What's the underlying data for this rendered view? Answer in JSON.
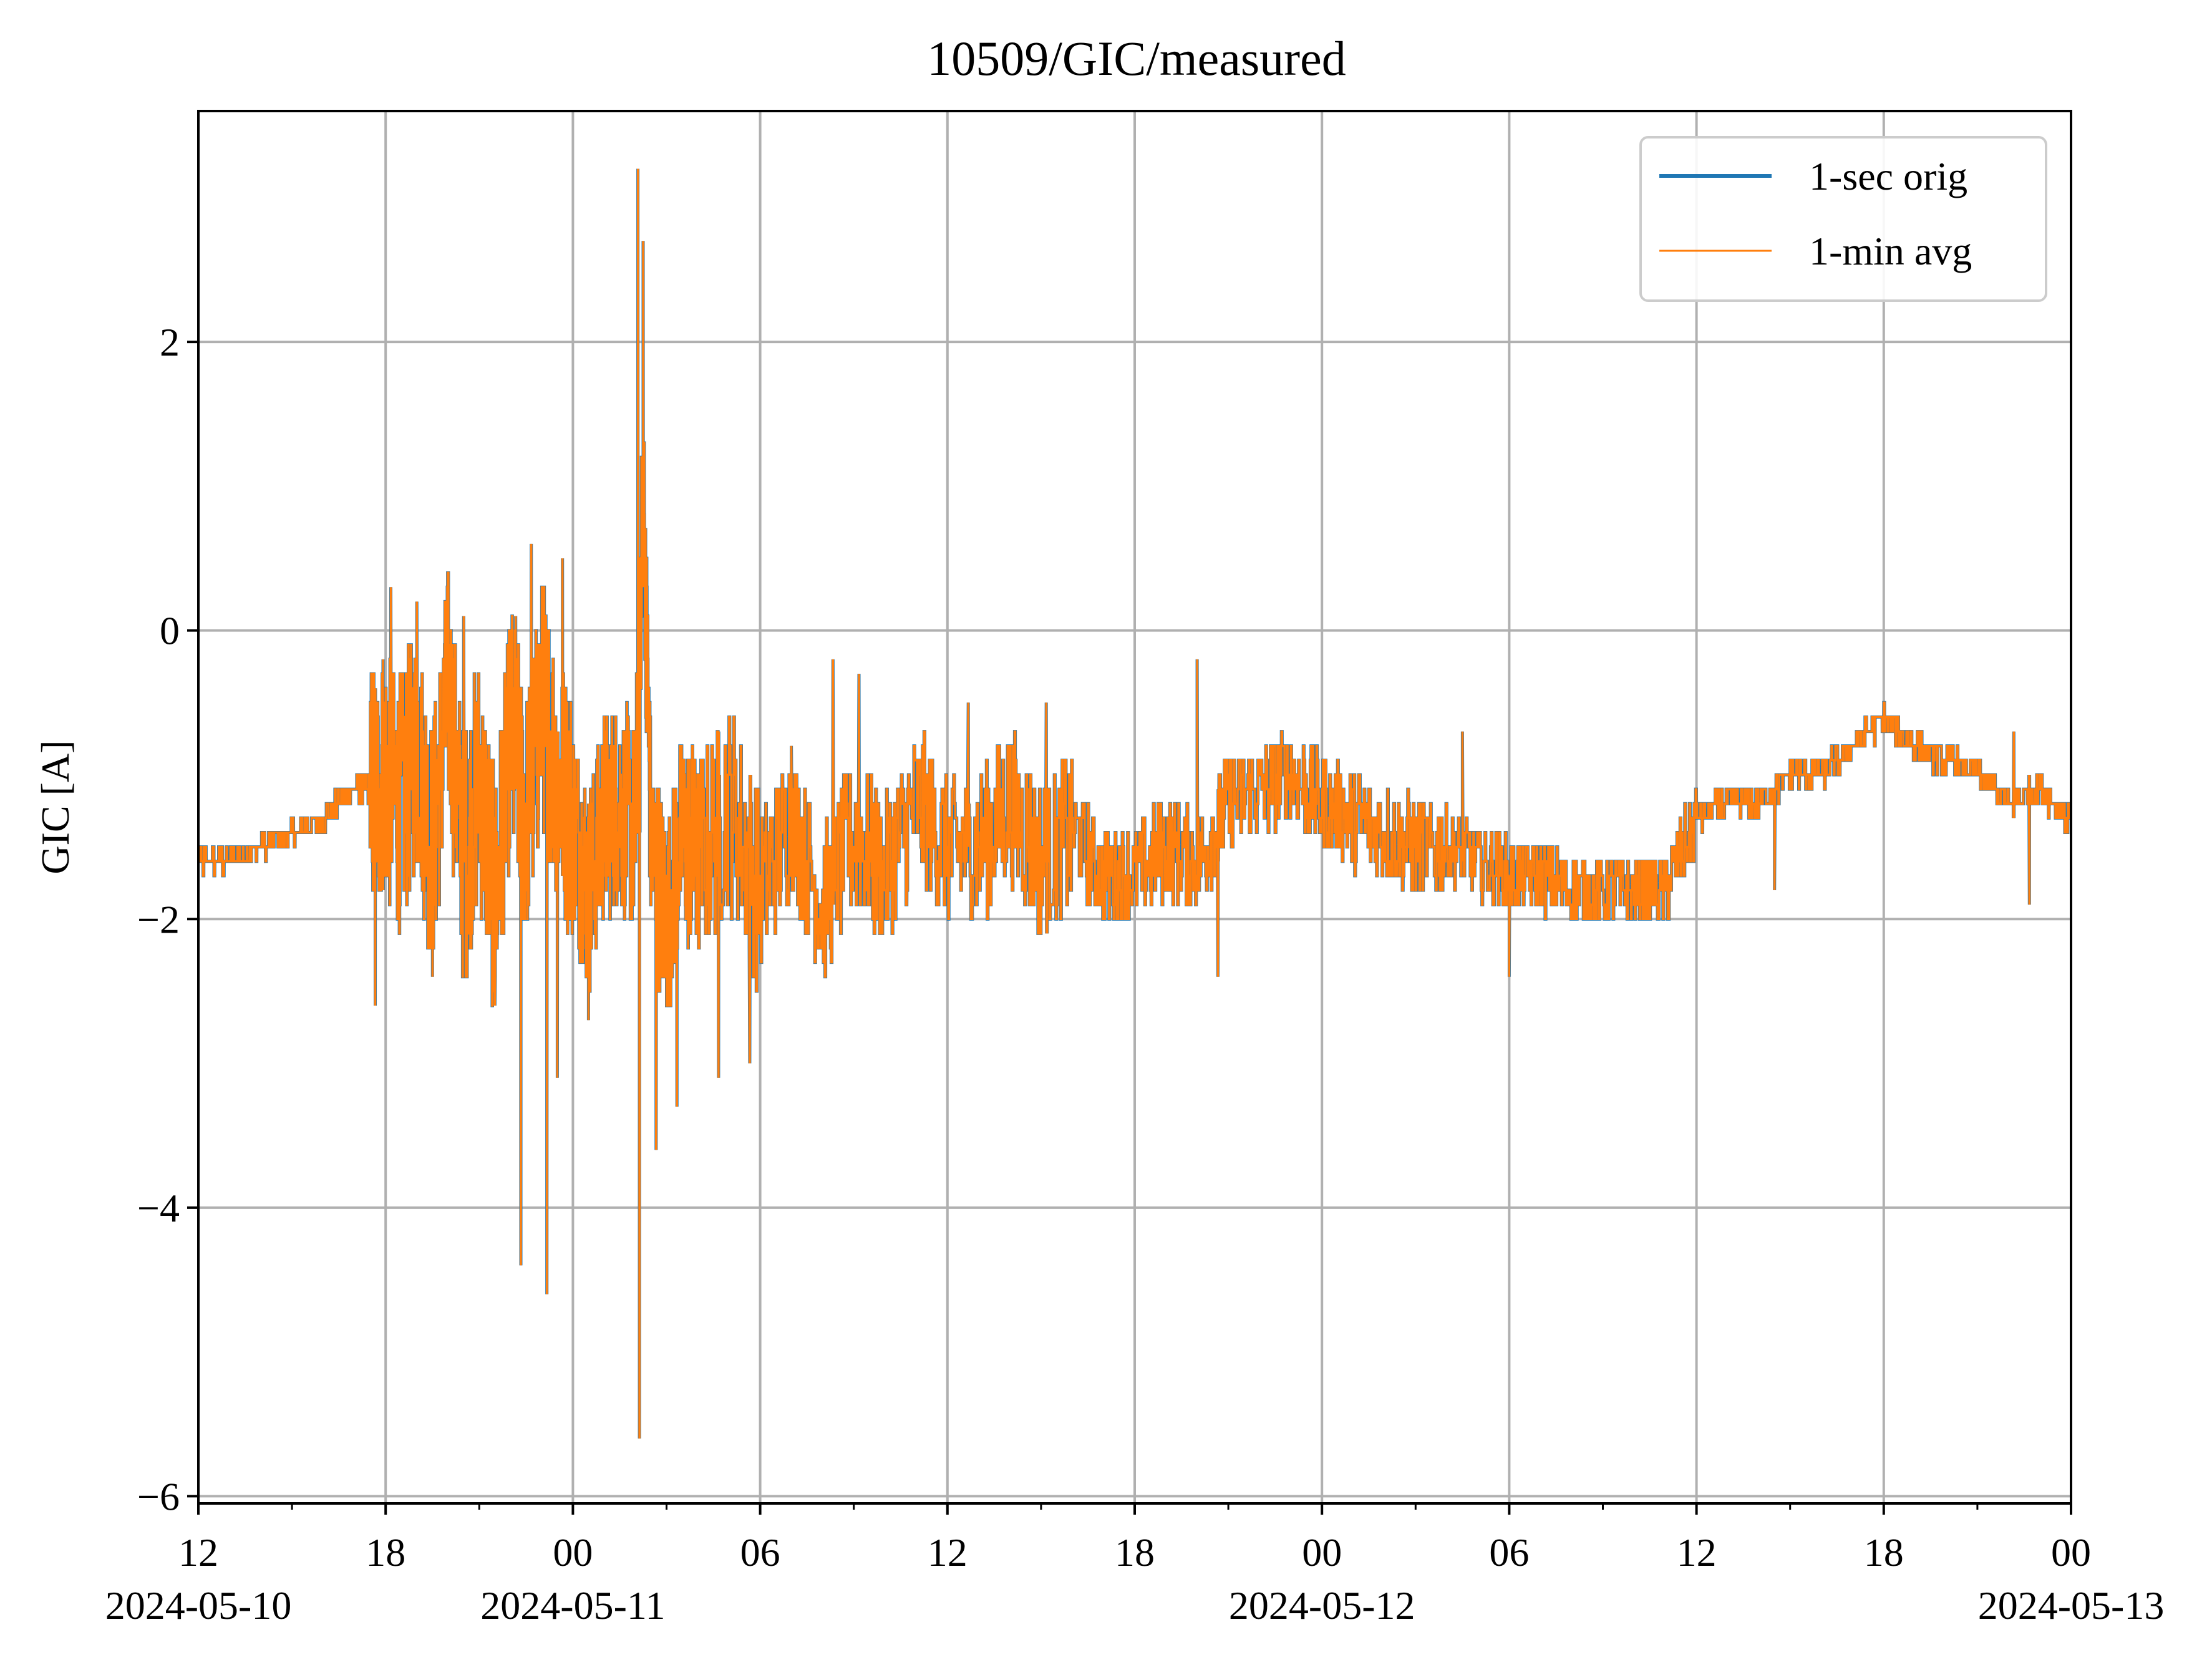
{
  "chart_data": {
    "type": "line",
    "title": "10509/GIC/measured",
    "xlabel": "",
    "ylabel": "GIC [A]",
    "xlim": [
      "2024-05-10 12:00",
      "2024-05-13 00:00"
    ],
    "ylim": [
      -6.05,
      3.6
    ],
    "grid": true,
    "legend_position": "top-right",
    "x_ticks": [
      {
        "value": "2024-05-10 12:00",
        "label": "12",
        "date_label": "2024-05-10"
      },
      {
        "value": "2024-05-10 18:00",
        "label": "18",
        "date_label": ""
      },
      {
        "value": "2024-05-11 00:00",
        "label": "00",
        "date_label": "2024-05-11"
      },
      {
        "value": "2024-05-11 06:00",
        "label": "06",
        "date_label": ""
      },
      {
        "value": "2024-05-11 12:00",
        "label": "12",
        "date_label": ""
      },
      {
        "value": "2024-05-11 18:00",
        "label": "18",
        "date_label": ""
      },
      {
        "value": "2024-05-12 00:00",
        "label": "00",
        "date_label": "2024-05-12"
      },
      {
        "value": "2024-05-12 06:00",
        "label": "06",
        "date_label": ""
      },
      {
        "value": "2024-05-12 12:00",
        "label": "12",
        "date_label": ""
      },
      {
        "value": "2024-05-12 18:00",
        "label": "18",
        "date_label": ""
      },
      {
        "value": "2024-05-13 00:00",
        "label": "00",
        "date_label": "2024-05-13"
      }
    ],
    "y_ticks": [
      {
        "value": 2,
        "label": "2"
      },
      {
        "value": 0,
        "label": "0"
      },
      {
        "value": -2,
        "label": "−2"
      },
      {
        "value": -4,
        "label": "−4"
      },
      {
        "value": -6,
        "label": "−6"
      }
    ],
    "series": [
      {
        "name": "1-sec orig",
        "color": "#1f77b4",
        "x": [
          "2024-05-10 12:00",
          "2024-05-10 13:00",
          "2024-05-10 14:00",
          "2024-05-10 15:00",
          "2024-05-10 16:00",
          "2024-05-10 17:00",
          "2024-05-10 17:30",
          "2024-05-10 18:00",
          "2024-05-10 18:30",
          "2024-05-10 19:00",
          "2024-05-10 19:30",
          "2024-05-10 20:00",
          "2024-05-10 20:30",
          "2024-05-10 21:00",
          "2024-05-10 21:30",
          "2024-05-10 22:00",
          "2024-05-10 22:30",
          "2024-05-10 23:00",
          "2024-05-10 23:30",
          "2024-05-11 00:00",
          "2024-05-11 00:30",
          "2024-05-11 01:00",
          "2024-05-11 01:30",
          "2024-05-11 02:00",
          "2024-05-11 02:15",
          "2024-05-11 02:30",
          "2024-05-11 03:00",
          "2024-05-11 03:30",
          "2024-05-11 04:00",
          "2024-05-11 05:00",
          "2024-05-11 06:00",
          "2024-05-11 07:00",
          "2024-05-11 08:00",
          "2024-05-11 09:00",
          "2024-05-11 10:00",
          "2024-05-11 11:00",
          "2024-05-11 12:00",
          "2024-05-11 13:00",
          "2024-05-11 14:00",
          "2024-05-11 15:00",
          "2024-05-11 16:00",
          "2024-05-11 17:00",
          "2024-05-11 18:00",
          "2024-05-11 19:00",
          "2024-05-11 20:00",
          "2024-05-11 21:00",
          "2024-05-11 22:00",
          "2024-05-11 23:00",
          "2024-05-12 00:00",
          "2024-05-12 01:00",
          "2024-05-12 02:00",
          "2024-05-12 03:00",
          "2024-05-12 04:00",
          "2024-05-12 05:00",
          "2024-05-12 06:00",
          "2024-05-12 07:00",
          "2024-05-12 08:00",
          "2024-05-12 09:00",
          "2024-05-12 10:00",
          "2024-05-12 11:00",
          "2024-05-12 12:00",
          "2024-05-12 13:00",
          "2024-05-12 14:00",
          "2024-05-12 15:00",
          "2024-05-12 16:00",
          "2024-05-12 17:00",
          "2024-05-12 18:00",
          "2024-05-12 19:00",
          "2024-05-12 20:00",
          "2024-05-12 21:00",
          "2024-05-12 22:00",
          "2024-05-12 23:00",
          "2024-05-13 00:00"
        ],
        "y": [
          -1.6,
          -1.6,
          -1.5,
          -1.4,
          -1.3,
          -1.1,
          -1.1,
          -1.0,
          -1.2,
          -0.8,
          -1.5,
          -0.4,
          -1.6,
          -1.0,
          -1.9,
          -0.7,
          -1.3,
          -0.5,
          -1.0,
          -1.3,
          -1.8,
          -1.3,
          -1.2,
          -1.4,
          1.0,
          -1.5,
          -2.0,
          -1.4,
          -1.6,
          -1.2,
          -1.8,
          -1.3,
          -1.9,
          -1.4,
          -1.7,
          -1.2,
          -1.5,
          -1.5,
          -1.2,
          -1.6,
          -1.4,
          -1.7,
          -1.7,
          -1.5,
          -1.6,
          -1.2,
          -1.1,
          -1.0,
          -1.2,
          -1.3,
          -1.4,
          -1.5,
          -1.5,
          -1.6,
          -1.7,
          -1.7,
          -1.8,
          -1.8,
          -1.8,
          -1.8,
          -1.3,
          -1.2,
          -1.2,
          -1.0,
          -1.0,
          -0.8,
          -0.6,
          -0.8,
          -0.9,
          -1.0,
          -1.2,
          -1.1,
          -1.3
        ]
      },
      {
        "name": "1-min avg",
        "color": "#ff7f0e",
        "x": [
          "2024-05-10 12:00",
          "2024-05-10 13:00",
          "2024-05-10 14:00",
          "2024-05-10 15:00",
          "2024-05-10 16:00",
          "2024-05-10 17:00",
          "2024-05-10 17:30",
          "2024-05-10 18:00",
          "2024-05-10 18:30",
          "2024-05-10 19:00",
          "2024-05-10 19:30",
          "2024-05-10 20:00",
          "2024-05-10 20:30",
          "2024-05-10 21:00",
          "2024-05-10 21:30",
          "2024-05-10 22:00",
          "2024-05-10 22:30",
          "2024-05-10 23:00",
          "2024-05-10 23:30",
          "2024-05-11 00:00",
          "2024-05-11 00:30",
          "2024-05-11 01:00",
          "2024-05-11 01:30",
          "2024-05-11 02:00",
          "2024-05-11 02:15",
          "2024-05-11 02:30",
          "2024-05-11 03:00",
          "2024-05-11 03:30",
          "2024-05-11 04:00",
          "2024-05-11 05:00",
          "2024-05-11 06:00",
          "2024-05-11 07:00",
          "2024-05-11 08:00",
          "2024-05-11 09:00",
          "2024-05-11 10:00",
          "2024-05-11 11:00",
          "2024-05-11 12:00",
          "2024-05-11 13:00",
          "2024-05-11 14:00",
          "2024-05-11 15:00",
          "2024-05-11 16:00",
          "2024-05-11 17:00",
          "2024-05-11 18:00",
          "2024-05-11 19:00",
          "2024-05-11 20:00",
          "2024-05-11 21:00",
          "2024-05-11 22:00",
          "2024-05-11 23:00",
          "2024-05-12 00:00",
          "2024-05-12 01:00",
          "2024-05-12 02:00",
          "2024-05-12 03:00",
          "2024-05-12 04:00",
          "2024-05-12 05:00",
          "2024-05-12 06:00",
          "2024-05-12 07:00",
          "2024-05-12 08:00",
          "2024-05-12 09:00",
          "2024-05-12 10:00",
          "2024-05-12 11:00",
          "2024-05-12 12:00",
          "2024-05-12 13:00",
          "2024-05-12 14:00",
          "2024-05-12 15:00",
          "2024-05-12 16:00",
          "2024-05-12 17:00",
          "2024-05-12 18:00",
          "2024-05-12 19:00",
          "2024-05-12 20:00",
          "2024-05-12 21:00",
          "2024-05-12 22:00",
          "2024-05-12 23:00",
          "2024-05-13 00:00"
        ],
        "y": [
          -1.6,
          -1.6,
          -1.5,
          -1.4,
          -1.3,
          -1.1,
          -1.1,
          -1.0,
          -1.2,
          -0.8,
          -1.5,
          -0.4,
          -1.6,
          -1.0,
          -1.9,
          -0.7,
          -1.3,
          -0.5,
          -1.0,
          -1.3,
          -1.8,
          -1.3,
          -1.2,
          -1.4,
          1.0,
          -1.5,
          -2.0,
          -1.4,
          -1.6,
          -1.2,
          -1.8,
          -1.3,
          -1.9,
          -1.4,
          -1.7,
          -1.2,
          -1.5,
          -1.5,
          -1.2,
          -1.6,
          -1.4,
          -1.7,
          -1.7,
          -1.5,
          -1.6,
          -1.2,
          -1.1,
          -1.0,
          -1.2,
          -1.3,
          -1.4,
          -1.5,
          -1.5,
          -1.6,
          -1.7,
          -1.7,
          -1.8,
          -1.8,
          -1.8,
          -1.8,
          -1.3,
          -1.2,
          -1.2,
          -1.0,
          -1.0,
          -0.8,
          -0.6,
          -0.8,
          -0.9,
          -1.0,
          -1.2,
          -1.1,
          -1.3
        ]
      }
    ],
    "annotations": [],
    "spikes": [
      {
        "x": "2024-05-10 17:40",
        "y": -2.6
      },
      {
        "x": "2024-05-10 17:55",
        "y": -0.2
      },
      {
        "x": "2024-05-10 18:10",
        "y": 0.3
      },
      {
        "x": "2024-05-10 19:00",
        "y": 0.2
      },
      {
        "x": "2024-05-10 19:30",
        "y": -2.4
      },
      {
        "x": "2024-05-10 20:30",
        "y": 0.1
      },
      {
        "x": "2024-05-10 21:30",
        "y": -2.6
      },
      {
        "x": "2024-05-10 22:10",
        "y": 0.1
      },
      {
        "x": "2024-05-10 22:20",
        "y": -4.4
      },
      {
        "x": "2024-05-10 22:40",
        "y": 0.6
      },
      {
        "x": "2024-05-10 23:10",
        "y": -4.6
      },
      {
        "x": "2024-05-10 23:30",
        "y": -3.1
      },
      {
        "x": "2024-05-10 23:40",
        "y": 0.5
      },
      {
        "x": "2024-05-11 00:30",
        "y": -2.7
      },
      {
        "x": "2024-05-11 02:05",
        "y": 3.2
      },
      {
        "x": "2024-05-11 02:08",
        "y": -5.6
      },
      {
        "x": "2024-05-11 02:15",
        "y": 2.7
      },
      {
        "x": "2024-05-11 02:40",
        "y": -3.6
      },
      {
        "x": "2024-05-11 03:20",
        "y": -3.3
      },
      {
        "x": "2024-05-11 04:40",
        "y": -3.1
      },
      {
        "x": "2024-05-11 05:40",
        "y": -3.0
      },
      {
        "x": "2024-05-11 07:00",
        "y": -0.8
      },
      {
        "x": "2024-05-11 08:20",
        "y": -0.2
      },
      {
        "x": "2024-05-11 09:10",
        "y": -0.3
      },
      {
        "x": "2024-05-11 12:40",
        "y": -0.5
      },
      {
        "x": "2024-05-11 15:10",
        "y": -0.5
      },
      {
        "x": "2024-05-11 20:00",
        "y": -0.2
      },
      {
        "x": "2024-05-11 20:40",
        "y": -2.4
      },
      {
        "x": "2024-05-12 04:30",
        "y": -0.7
      },
      {
        "x": "2024-05-12 06:00",
        "y": -2.4
      },
      {
        "x": "2024-05-12 14:30",
        "y": -1.8
      },
      {
        "x": "2024-05-12 22:10",
        "y": -0.7
      },
      {
        "x": "2024-05-12 22:40",
        "y": -1.9
      }
    ]
  }
}
